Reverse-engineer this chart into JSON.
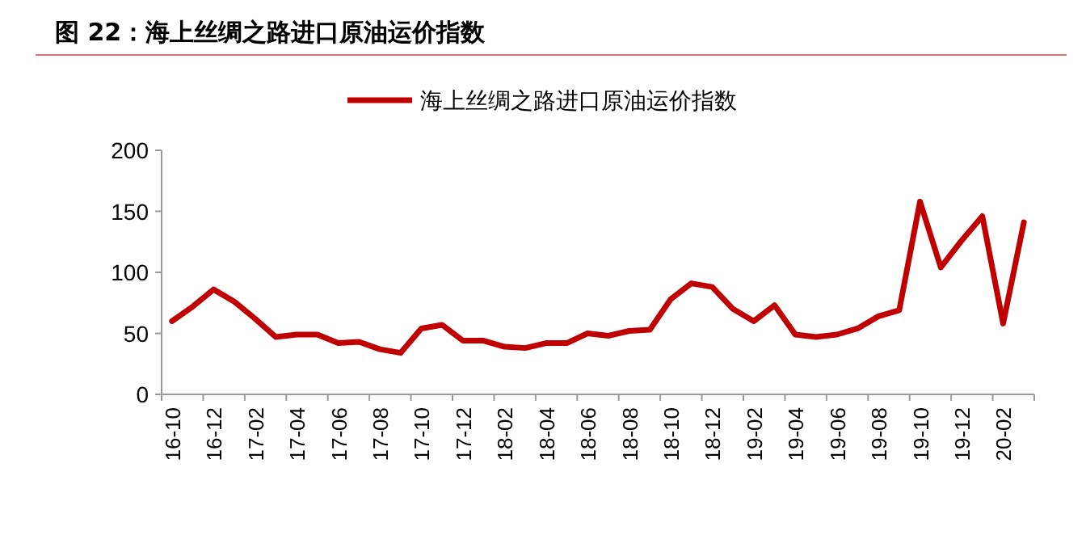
{
  "chart_data": {
    "type": "line",
    "title": "图 22：海上丝绸之路进口原油运价指数",
    "categories": [
      "16-10",
      null,
      "16-12",
      null,
      "17-02",
      null,
      "17-04",
      null,
      "17-06",
      null,
      "17-08",
      null,
      "17-10",
      null,
      "17-12",
      null,
      "18-02",
      null,
      "18-04",
      null,
      "18-06",
      null,
      "18-08",
      null,
      "18-10",
      null,
      "18-12",
      null,
      "19-02",
      null,
      "19-04",
      null,
      "19-06",
      null,
      "19-08",
      null,
      "19-10",
      null,
      "19-12",
      null,
      "20-02",
      null
    ],
    "series": [
      {
        "name": "海上丝绸之路进口原油运价指数",
        "color": "#c00000",
        "values": [
          60,
          72,
          86,
          76,
          62,
          47,
          49,
          49,
          42,
          43,
          37,
          34,
          54,
          57,
          44,
          44,
          39,
          38,
          42,
          42,
          50,
          48,
          52,
          53,
          78,
          91,
          88,
          70,
          60,
          73,
          49,
          47,
          49,
          54,
          64,
          69,
          158,
          104,
          126,
          146,
          58,
          141
        ]
      }
    ],
    "ylim": [
      0,
      200
    ],
    "yticks": [
      0,
      50,
      100,
      150,
      200
    ],
    "legend": "top",
    "grid": false,
    "line_style": "solid",
    "marker": "none"
  }
}
